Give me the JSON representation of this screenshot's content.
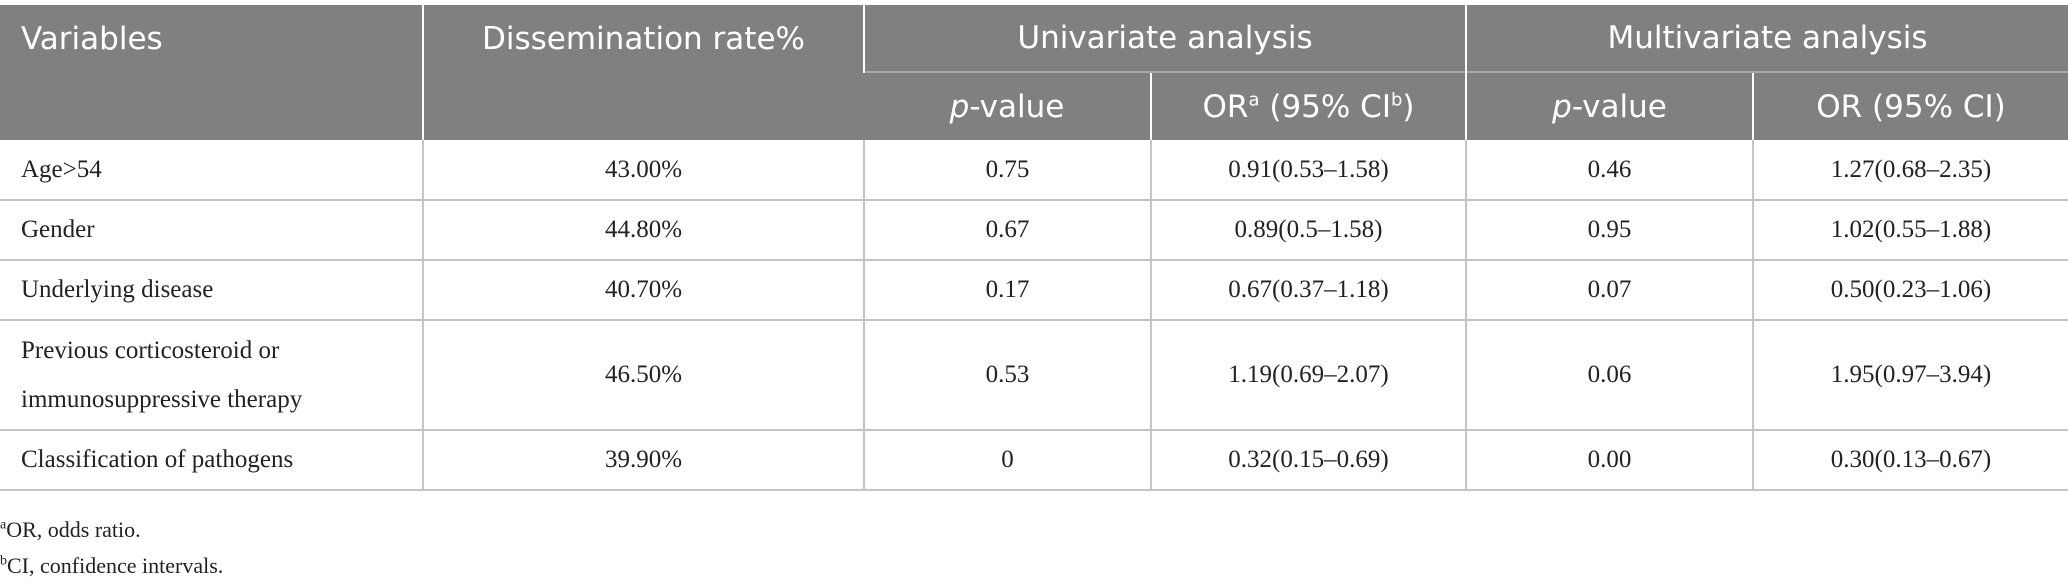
{
  "table": {
    "header": {
      "variables": "Variables",
      "dissemination": "Dissemination rate%",
      "univariate": "Univariate analysis",
      "multivariate": "Multivariate analysis",
      "p_italic": "p",
      "p_rest": "-value",
      "or_a_prefix": "OR",
      "or_a_sup": "a",
      "or_a_mid": " (95% CI",
      "or_a_sup2": "b",
      "or_a_end": ")",
      "or_plain": "OR (95% CI)"
    },
    "rows": [
      {
        "variable": "Age>54",
        "rate": "43.00%",
        "uni_p": "0.75",
        "uni_or": "0.91(0.53–1.58)",
        "multi_p": "0.46",
        "multi_or": "1.27(0.68–2.35)"
      },
      {
        "variable": "Gender",
        "rate": "44.80%",
        "uni_p": "0.67",
        "uni_or": "0.89(0.5–1.58)",
        "multi_p": "0.95",
        "multi_or": "1.02(0.55–1.88)"
      },
      {
        "variable": "Underlying disease",
        "rate": "40.70%",
        "uni_p": "0.17",
        "uni_or": "0.67(0.37–1.18)",
        "multi_p": "0.07",
        "multi_or": "0.50(0.23–1.06)"
      },
      {
        "variable_line1": "Previous corticosteroid or",
        "variable_line2": "immunosuppressive therapy",
        "rate": "46.50%",
        "uni_p": "0.53",
        "uni_or": "1.19(0.69–2.07)",
        "multi_p": "0.06",
        "multi_or": "1.95(0.97–3.94)"
      },
      {
        "variable": "Classification of pathogens",
        "rate": "39.90%",
        "uni_p": "0",
        "uni_or": "0.32(0.15–0.69)",
        "multi_p": "0.00",
        "multi_or": "0.30(0.13–0.67)"
      }
    ]
  },
  "footnotes": {
    "a_mark": "a",
    "a_text": "OR, odds ratio.",
    "b_mark": "b",
    "b_text": "CI, confidence intervals."
  }
}
